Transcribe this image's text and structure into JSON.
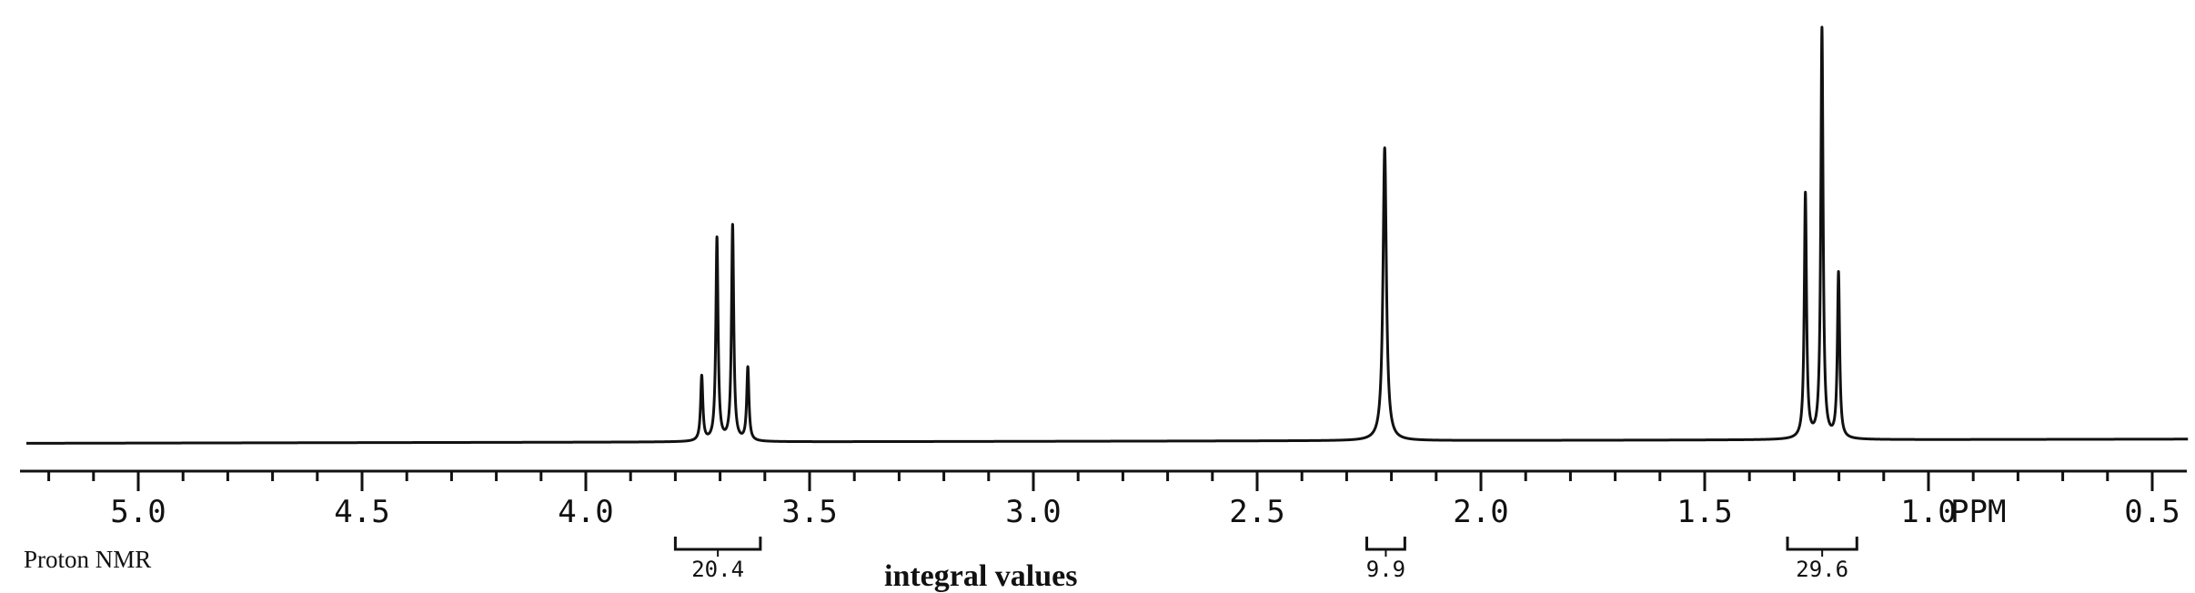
{
  "chart_data": {
    "type": "line",
    "title": "",
    "xlabel": "",
    "ylabel": "",
    "x_unit_label": "PPM",
    "xlim": [
      5.25,
      0.42
    ],
    "ylim": [
      0,
      1
    ],
    "x_reversed": true,
    "grid": false,
    "legend": "none",
    "x_ticks_major": [
      5.0,
      4.5,
      4.0,
      3.5,
      3.0,
      2.5,
      2.0,
      1.5,
      1.0,
      0.5
    ],
    "x_tick_labels": [
      "5.0",
      "4.5",
      "4.0",
      "3.5",
      "3.0",
      "2.5",
      "2.0",
      "1.5",
      "1.0",
      "0.5"
    ],
    "x_minor_step": 0.1,
    "baseline": {
      "left": 0.01,
      "right": 0.02
    },
    "peaks": [
      {
        "ppm": 3.741,
        "height": 0.155,
        "width": 0.003
      },
      {
        "ppm": 3.707,
        "height": 0.485,
        "width": 0.003
      },
      {
        "ppm": 3.672,
        "height": 0.515,
        "width": 0.003
      },
      {
        "ppm": 3.638,
        "height": 0.175,
        "width": 0.003
      },
      {
        "ppm": 2.215,
        "height": 0.7,
        "width": 0.0045
      },
      {
        "ppm": 1.275,
        "height": 0.585,
        "width": 0.003
      },
      {
        "ppm": 1.238,
        "height": 0.98,
        "width": 0.003
      },
      {
        "ppm": 1.201,
        "height": 0.395,
        "width": 0.003
      }
    ],
    "integrals": [
      {
        "label": "20.4",
        "from": 3.8,
        "to": 3.61
      },
      {
        "label": "9.9",
        "from": 2.255,
        "to": 2.17
      },
      {
        "label": "29.6",
        "from": 1.315,
        "to": 1.16
      }
    ],
    "annotations": [
      "Proton NMR",
      "integral values"
    ]
  },
  "labels": {
    "caption_left": "Proton NMR",
    "caption_center": "integral values",
    "ppm_unit": "PPM"
  }
}
